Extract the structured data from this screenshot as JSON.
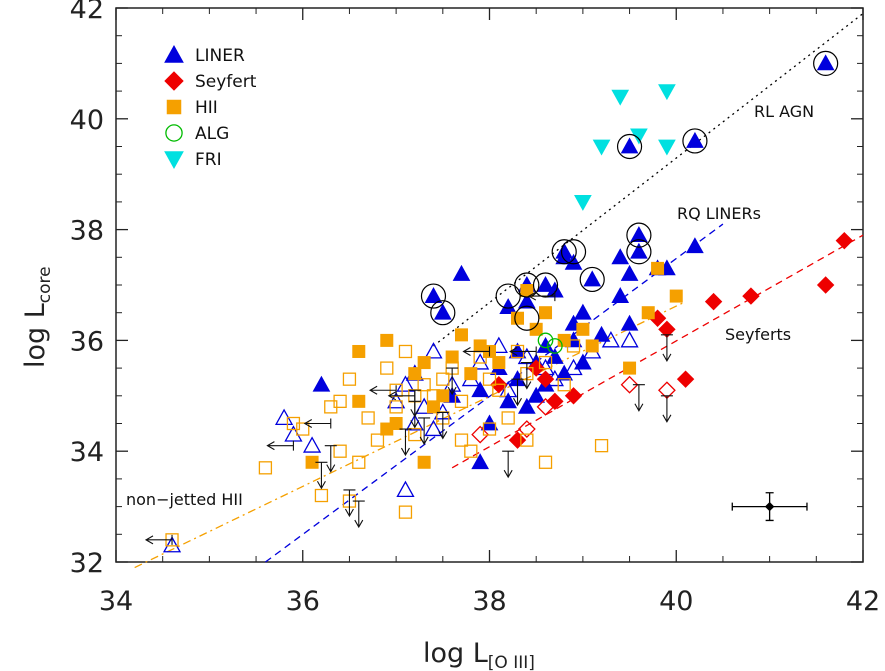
{
  "chart_data": {
    "type": "scatter",
    "xlabel": "log L",
    "xlabel_sub": "[O III]",
    "ylabel": "log L",
    "ylabel_sub": "core",
    "xlim": [
      34,
      42
    ],
    "ylim": [
      32,
      42
    ],
    "xticks": [
      34,
      36,
      38,
      40,
      42
    ],
    "yticks": [
      32,
      34,
      36,
      38,
      40,
      42
    ],
    "legend_position": "top-left",
    "colors": {
      "LINER": "#0000dd",
      "Seyfert": "#ee0000",
      "HII": "#f5a000",
      "ALG": "#00bb00",
      "FRI": "#00e0e0",
      "RL": "#000000",
      "RQ": "#0000dd",
      "Sey": "#ee0000",
      "HIIline": "#f5a000"
    },
    "legend": [
      {
        "label": "LINER",
        "shape": "triangle-up",
        "color": "#0000dd"
      },
      {
        "label": "Seyfert",
        "shape": "diamond",
        "color": "#ee0000"
      },
      {
        "label": "HII",
        "shape": "square",
        "color": "#f5a000"
      },
      {
        "label": "ALG",
        "shape": "circle-open",
        "color": "#00bb00"
      },
      {
        "label": "FRI",
        "shape": "triangle-down",
        "color": "#00e0e0"
      }
    ],
    "annotations": [
      "RL AGN",
      "RQ LINERs",
      "Seyferts",
      "non−jetted HII"
    ],
    "lines": [
      {
        "name": "RL AGN",
        "style": "dotted",
        "color": "#000000",
        "x": [
          37.4,
          42
        ],
        "y": [
          35.9,
          41.9
        ]
      },
      {
        "name": "RQ LINERs",
        "style": "dashed",
        "color": "#0000dd",
        "x": [
          35.6,
          40.5
        ],
        "y": [
          32,
          38.1
        ]
      },
      {
        "name": "Seyferts",
        "style": "dashed",
        "color": "#ee0000",
        "x": [
          37.6,
          42
        ],
        "y": [
          33.7,
          37.9
        ]
      },
      {
        "name": "non-jetted HII",
        "style": "dash-dot",
        "color": "#f5a000",
        "x": [
          34.2,
          40.1
        ],
        "y": [
          31.9,
          36.7
        ]
      }
    ],
    "series": [
      {
        "name": "LINER",
        "shape": "triangle-up",
        "fill": true,
        "points": [
          [
            41.6,
            41.0
          ],
          [
            40.2,
            39.6
          ],
          [
            39.5,
            39.5
          ],
          [
            39.6,
            37.9
          ],
          [
            39.6,
            37.6
          ],
          [
            39.4,
            37.5
          ],
          [
            39.1,
            37.1
          ],
          [
            38.8,
            37.6
          ],
          [
            38.9,
            37.4
          ],
          [
            38.8,
            37.5
          ],
          [
            38.6,
            37.0
          ],
          [
            38.7,
            36.9
          ],
          [
            38.4,
            37.0
          ],
          [
            38.2,
            36.6
          ],
          [
            38.4,
            36.7
          ],
          [
            37.4,
            36.8
          ],
          [
            37.5,
            36.5
          ],
          [
            37.7,
            37.2
          ],
          [
            39.0,
            36.5
          ],
          [
            38.9,
            36.3
          ],
          [
            39.4,
            36.8
          ],
          [
            39.9,
            37.3
          ],
          [
            40.2,
            37.7
          ],
          [
            39.8,
            37.3
          ],
          [
            39.5,
            37.2
          ],
          [
            36.2,
            35.2
          ],
          [
            37.9,
            33.8
          ],
          [
            38.0,
            34.5
          ],
          [
            38.4,
            34.8
          ],
          [
            38.6,
            35.2
          ],
          [
            38.8,
            35.4
          ],
          [
            38.5,
            35.6
          ],
          [
            38.3,
            35.8
          ],
          [
            38.1,
            35.5
          ],
          [
            37.6,
            35.0
          ],
          [
            37.9,
            35.1
          ],
          [
            38.2,
            34.9
          ],
          [
            39.0,
            35.6
          ],
          [
            39.2,
            36.1
          ],
          [
            39.5,
            36.3
          ],
          [
            38.6,
            35.9
          ],
          [
            38.7,
            35.7
          ],
          [
            38.9,
            36.0
          ],
          [
            38.3,
            35.3
          ],
          [
            38.5,
            35.0
          ]
        ]
      },
      {
        "name": "LINER",
        "shape": "triangle-up",
        "fill": false,
        "points": [
          [
            34.6,
            32.3
          ],
          [
            35.8,
            34.6
          ],
          [
            35.9,
            34.3
          ],
          [
            37.1,
            33.3
          ],
          [
            36.1,
            34.1
          ],
          [
            37.4,
            35.8
          ],
          [
            37.1,
            35.2
          ],
          [
            37.2,
            35.4
          ],
          [
            37.5,
            34.7
          ],
          [
            37.3,
            34.8
          ],
          [
            37.6,
            35.2
          ],
          [
            37.8,
            35.3
          ],
          [
            38.1,
            35.9
          ],
          [
            38.4,
            35.7
          ],
          [
            38.7,
            35.3
          ],
          [
            38.9,
            35.5
          ],
          [
            39.1,
            35.8
          ],
          [
            39.3,
            36.0
          ],
          [
            38.6,
            35.5
          ],
          [
            37.9,
            35.6
          ],
          [
            37.0,
            34.9
          ],
          [
            37.2,
            34.5
          ],
          [
            37.4,
            34.4
          ],
          [
            38.2,
            35.1
          ],
          [
            39.5,
            36.0
          ]
        ]
      },
      {
        "name": "Seyfert",
        "shape": "diamond",
        "fill": true,
        "points": [
          [
            41.8,
            37.8
          ],
          [
            41.6,
            37.0
          ],
          [
            40.8,
            36.8
          ],
          [
            40.4,
            36.7
          ],
          [
            40.1,
            35.3
          ],
          [
            39.9,
            36.2
          ],
          [
            39.8,
            36.4
          ],
          [
            38.9,
            35.0
          ],
          [
            38.7,
            34.9
          ],
          [
            38.3,
            34.2
          ],
          [
            38.1,
            35.2
          ],
          [
            38.5,
            35.5
          ],
          [
            38.6,
            35.3
          ]
        ]
      },
      {
        "name": "Seyfert",
        "shape": "diamond",
        "fill": false,
        "points": [
          [
            39.9,
            35.1
          ],
          [
            39.5,
            35.2
          ],
          [
            38.6,
            34.8
          ],
          [
            38.4,
            34.4
          ],
          [
            37.9,
            34.3
          ]
        ]
      },
      {
        "name": "HII",
        "shape": "square",
        "fill": true,
        "points": [
          [
            39.8,
            37.3
          ],
          [
            40.0,
            36.8
          ],
          [
            39.7,
            36.5
          ],
          [
            36.9,
            36.0
          ],
          [
            36.6,
            35.8
          ],
          [
            36.9,
            34.4
          ],
          [
            36.1,
            33.8
          ],
          [
            37.3,
            33.8
          ],
          [
            38.4,
            36.9
          ],
          [
            38.3,
            36.4
          ],
          [
            38.8,
            36.0
          ],
          [
            39.0,
            36.2
          ],
          [
            39.5,
            35.5
          ],
          [
            37.6,
            35.7
          ],
          [
            37.8,
            35.4
          ],
          [
            37.5,
            35.0
          ],
          [
            37.4,
            34.8
          ],
          [
            37.2,
            35.4
          ],
          [
            37.7,
            36.1
          ],
          [
            38.0,
            35.8
          ],
          [
            38.5,
            36.2
          ],
          [
            39.1,
            35.9
          ],
          [
            37.0,
            34.5
          ],
          [
            36.6,
            34.9
          ],
          [
            38.1,
            35.6
          ],
          [
            38.6,
            36.5
          ],
          [
            37.3,
            35.6
          ],
          [
            37.9,
            35.9
          ]
        ]
      },
      {
        "name": "HII",
        "shape": "square",
        "fill": false,
        "points": [
          [
            34.6,
            32.4
          ],
          [
            35.6,
            33.7
          ],
          [
            35.9,
            34.5
          ],
          [
            36.2,
            33.2
          ],
          [
            36.5,
            33.1
          ],
          [
            36.6,
            33.8
          ],
          [
            36.4,
            34.0
          ],
          [
            37.1,
            32.9
          ],
          [
            36.8,
            34.2
          ],
          [
            37.0,
            34.8
          ],
          [
            37.2,
            35.0
          ],
          [
            36.5,
            35.3
          ],
          [
            36.9,
            35.5
          ],
          [
            37.3,
            35.2
          ],
          [
            37.5,
            34.6
          ],
          [
            37.7,
            34.2
          ],
          [
            37.8,
            34.0
          ],
          [
            38.0,
            34.4
          ],
          [
            38.2,
            34.6
          ],
          [
            38.4,
            34.2
          ],
          [
            38.6,
            33.8
          ],
          [
            39.2,
            34.1
          ],
          [
            38.0,
            35.3
          ],
          [
            37.6,
            35.5
          ],
          [
            37.4,
            35.0
          ],
          [
            37.9,
            35.7
          ],
          [
            38.3,
            35.8
          ],
          [
            38.6,
            35.6
          ],
          [
            38.9,
            35.9
          ],
          [
            36.3,
            34.8
          ],
          [
            36.0,
            34.4
          ],
          [
            37.1,
            35.8
          ],
          [
            37.7,
            34.9
          ],
          [
            37.5,
            35.3
          ],
          [
            38.1,
            35.1
          ],
          [
            38.4,
            35.4
          ],
          [
            37.0,
            35.1
          ],
          [
            36.7,
            34.6
          ],
          [
            37.2,
            34.3
          ],
          [
            38.8,
            35.2
          ],
          [
            36.4,
            34.9
          ]
        ]
      },
      {
        "name": "ALG",
        "shape": "circle-open",
        "fill": false,
        "points": [
          [
            38.6,
            36.0
          ],
          [
            38.7,
            35.9
          ]
        ]
      },
      {
        "name": "FRI",
        "shape": "triangle-down",
        "fill": true,
        "points": [
          [
            39.4,
            40.4
          ],
          [
            39.9,
            40.5
          ],
          [
            39.6,
            39.7
          ],
          [
            39.2,
            39.5
          ],
          [
            39.9,
            39.5
          ],
          [
            39.0,
            38.5
          ]
        ]
      }
    ],
    "circled": [
      [
        41.6,
        41.0
      ],
      [
        40.2,
        39.6
      ],
      [
        39.5,
        39.5
      ],
      [
        39.6,
        37.9
      ],
      [
        39.6,
        37.6
      ],
      [
        39.1,
        37.1
      ],
      [
        38.8,
        37.6
      ],
      [
        38.9,
        37.6
      ],
      [
        38.6,
        37.0
      ],
      [
        38.4,
        37.0
      ],
      [
        37.4,
        36.8
      ],
      [
        37.5,
        36.5
      ],
      [
        38.2,
        36.8
      ],
      [
        38.4,
        36.4
      ]
    ],
    "upper_limits": [
      [
        36.3,
        34.1
      ],
      [
        36.2,
        33.8
      ],
      [
        36.6,
        33.1
      ],
      [
        36.5,
        33.3
      ],
      [
        37.1,
        34.4
      ],
      [
        37.2,
        35.1
      ],
      [
        37.3,
        34.6
      ],
      [
        37.5,
        34.7
      ],
      [
        37.2,
        34.9
      ],
      [
        38.2,
        34.0
      ],
      [
        38.3,
        35.3
      ],
      [
        39.6,
        35.2
      ],
      [
        39.9,
        35.0
      ],
      [
        39.9,
        36.1
      ],
      [
        37.6,
        35.5
      ],
      [
        38.4,
        35.6
      ]
    ],
    "left_limits": [
      [
        34.6,
        32.4
      ],
      [
        35.9,
        34.1
      ],
      [
        36.3,
        34.5
      ],
      [
        37.2,
        35.0
      ],
      [
        38.7,
        36.8
      ],
      [
        38.5,
        35.8
      ],
      [
        38.0,
        35.8
      ],
      [
        37.0,
        35.1
      ]
    ],
    "error_bar": {
      "x": 41.0,
      "y": 33.0,
      "xerr": 0.4,
      "yerr": 0.25
    }
  }
}
